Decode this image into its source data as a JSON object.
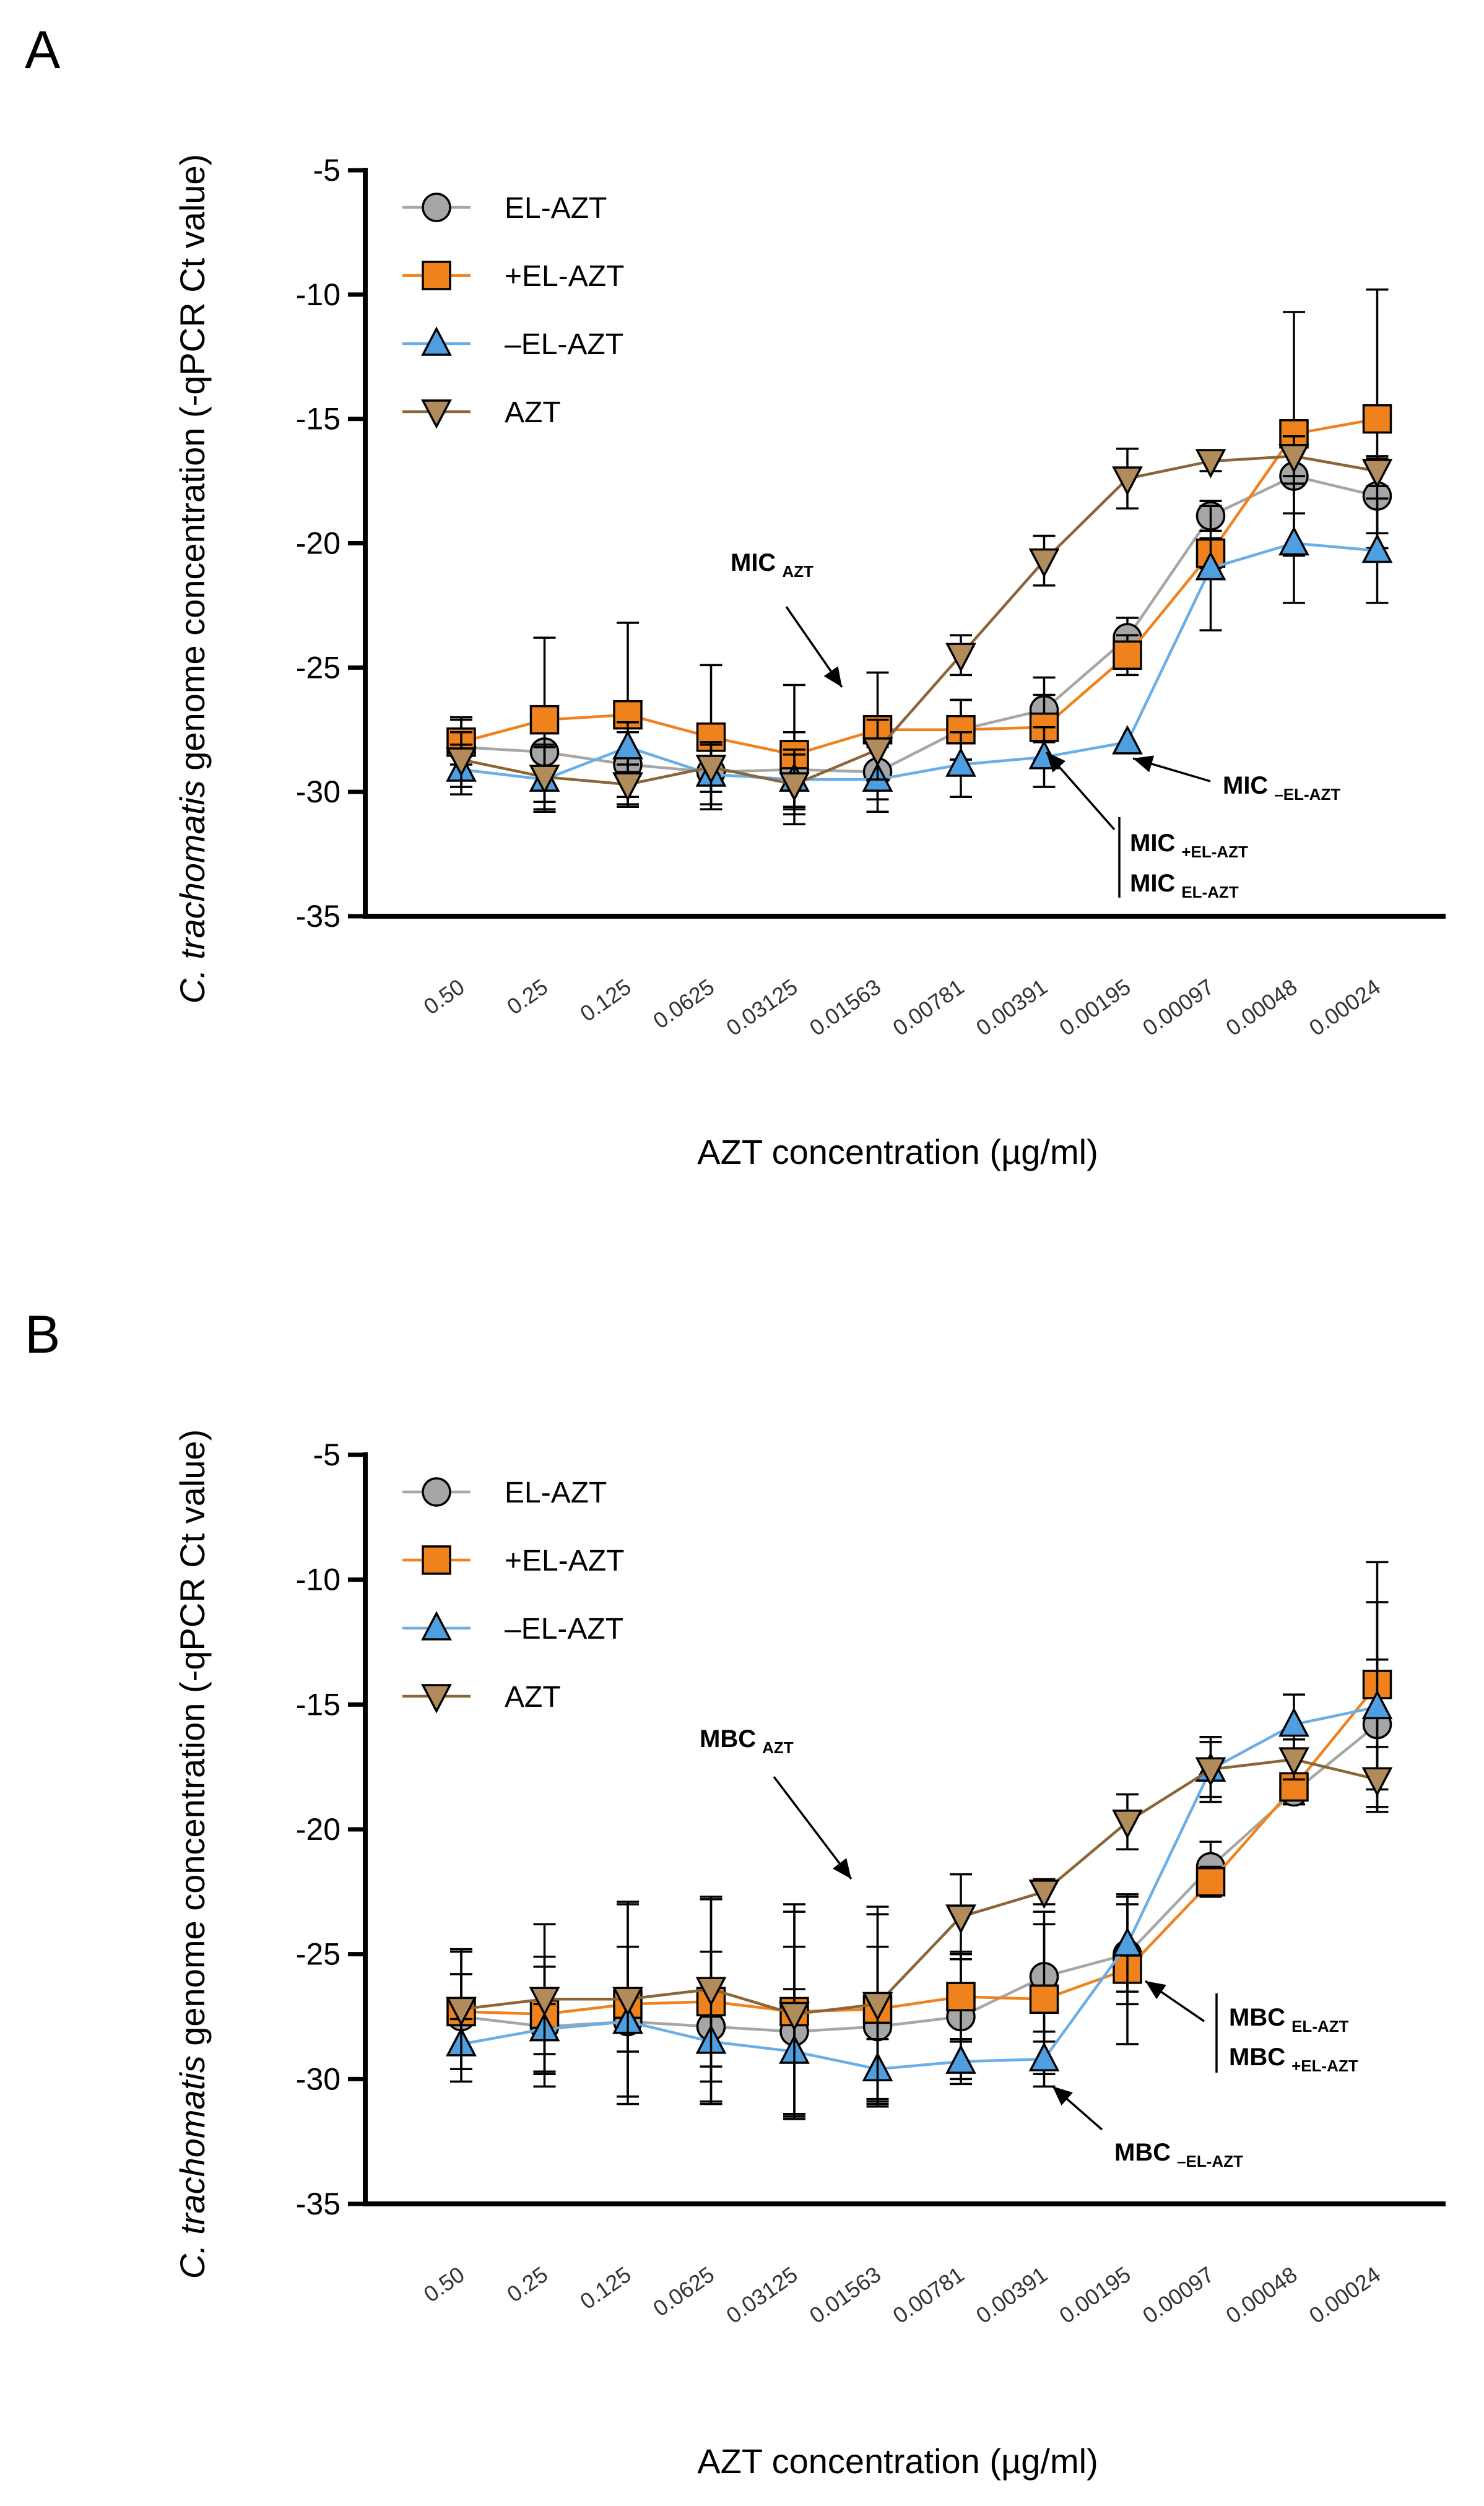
{
  "chart_data": [
    {
      "type": "line",
      "panel": "A",
      "xlabel": "AZT concentration (µg/ml)",
      "ylabel_italic": "C. trachomatis",
      "ylabel_rest": " genome concentration (-qPCR Ct value)",
      "ylim": [
        -35,
        -5
      ],
      "yticks": [
        -5,
        -10,
        -15,
        -20,
        -25,
        -30,
        -35
      ],
      "categories": [
        "0.50",
        "0.25",
        "0.125",
        "0.0625",
        "0.03125",
        "0.01563",
        "0.00781",
        "0.00391",
        "0.00195",
        "0.00097",
        "0.00048",
        "0.00024"
      ],
      "legend_position": "top-left",
      "series": [
        {
          "name": "EL-AZT",
          "marker": "circle",
          "color": "#a6a6a6",
          "line_color": "#a6a6a6",
          "values": [
            -28.2,
            -28.4,
            -28.9,
            -29.2,
            -29.1,
            -29.2,
            -27.5,
            -26.7,
            -23.8,
            -18.9,
            -17.3,
            -18.1
          ],
          "errors": [
            1.2,
            1.5,
            1.3,
            1.3,
            1.5,
            1.1,
            1.2,
            1.3,
            0.8,
            0.6,
            1.5,
            1.5
          ]
        },
        {
          "name": "+EL-AZT",
          "marker": "square",
          "color": "#f0821e",
          "line_color": "#f0821e",
          "values": [
            -28.0,
            -27.1,
            -26.9,
            -27.8,
            -28.5,
            -27.5,
            -27.5,
            -27.4,
            -24.5,
            -20.4,
            -15.6,
            -15.0
          ],
          "errors": [
            0.9,
            3.3,
            3.7,
            2.9,
            2.8,
            2.3,
            1.2,
            1.3,
            0.8,
            0.6,
            4.9,
            5.2
          ]
        },
        {
          "name": "–EL-AZT",
          "marker": "triangle-up",
          "color": "#4f9fe0",
          "line_color": "#6aaee8",
          "values": [
            -29.1,
            -29.5,
            -28.2,
            -29.3,
            -29.5,
            -29.5,
            -28.9,
            -28.6,
            -28.0,
            -21.0,
            -20.0,
            -20.3
          ],
          "errors": [
            1.0,
            1.3,
            1.0,
            1.2,
            1.2,
            1.3,
            1.3,
            1.2,
            0.0,
            2.5,
            2.4,
            2.1
          ]
        },
        {
          "name": "AZT",
          "marker": "triangle-down",
          "color": "#b28b5a",
          "line_color": "#8b6535",
          "values": [
            -28.7,
            -29.4,
            -29.7,
            -29.0,
            -29.7,
            -28.3,
            -24.5,
            -20.7,
            -17.4,
            -16.7,
            -16.5,
            -17.1
          ],
          "errors": [
            1.1,
            1.3,
            0.8,
            1.0,
            1.2,
            1.2,
            0.8,
            1.0,
            1.2,
            0.4,
            0.8,
            0.6
          ]
        }
      ],
      "annotations": {
        "mic_azt": {
          "main": "MIC",
          "sub": "AZT"
        },
        "mic_minus": {
          "main": "MIC",
          "sub": "–EL-AZT"
        },
        "mic_plus": {
          "main": "MIC",
          "sub": "+EL-AZT"
        },
        "mic_el": {
          "main": "MIC",
          "sub": "EL-AZT"
        }
      }
    },
    {
      "type": "line",
      "panel": "B",
      "xlabel": "AZT concentration (µg/ml)",
      "ylabel_italic": "C. trachomatis",
      "ylabel_rest": " genome concentration (-qPCR Ct value)",
      "ylim": [
        -35,
        -5
      ],
      "yticks": [
        -5,
        -10,
        -15,
        -20,
        -25,
        -30,
        -35
      ],
      "categories": [
        "0.50",
        "0.25",
        "0.125",
        "0.0625",
        "0.03125",
        "0.01563",
        "0.00781",
        "0.00391",
        "0.00195",
        "0.00097",
        "0.00048",
        "0.00024"
      ],
      "legend_position": "top-left",
      "series": [
        {
          "name": "EL-AZT",
          "marker": "circle",
          "color": "#a6a6a6",
          "line_color": "#a6a6a6",
          "values": [
            -27.5,
            -27.9,
            -27.7,
            -27.9,
            -28.1,
            -27.9,
            -27.5,
            -25.9,
            -25.0,
            -21.5,
            -18.5,
            -15.8
          ],
          "errors": [
            2.6,
            2.4,
            3.0,
            3.0,
            3.4,
            3.2,
            2.5,
            2.6,
            2.0,
            1.0,
            0.5,
            2.6
          ]
        },
        {
          "name": "+EL-AZT",
          "marker": "square",
          "color": "#f0821e",
          "line_color": "#f0821e",
          "values": [
            -27.3,
            -27.4,
            -27.0,
            -26.9,
            -27.3,
            -27.2,
            -26.7,
            -26.8,
            -25.6,
            -22.1,
            -18.3,
            -14.2
          ],
          "errors": [
            1.5,
            2.3,
            4.0,
            4.1,
            4.3,
            3.8,
            1.8,
            3.0,
            3.0,
            0.6,
            0.5,
            4.9
          ]
        },
        {
          "name": "–EL-AZT",
          "marker": "triangle-up",
          "color": "#4f9fe0",
          "line_color": "#6aaee8",
          "values": [
            -28.6,
            -28.0,
            -27.7,
            -28.5,
            -28.9,
            -29.6,
            -29.3,
            -29.2,
            -24.6,
            -17.6,
            -15.8,
            -15.1
          ],
          "errors": [
            1.0,
            1.0,
            1.2,
            1.0,
            2.5,
            1.2,
            0.9,
            1.1,
            1.9,
            1.1,
            1.2,
            4.2
          ]
        },
        {
          "name": "AZT",
          "marker": "triangle-down",
          "color": "#b28b5a",
          "line_color": "#8b6535",
          "values": [
            -27.2,
            -26.8,
            -26.8,
            -26.4,
            -27.4,
            -27.0,
            -23.5,
            -22.5,
            -19.7,
            -17.6,
            -17.2,
            -18.0
          ],
          "errors": [
            2.4,
            3.0,
            3.9,
            3.7,
            4.1,
            3.9,
            1.7,
            0.5,
            1.1,
            1.3,
            0.8,
            1.3
          ]
        }
      ],
      "annotations": {
        "mbc_azt": {
          "main": "MBC",
          "sub": "AZT"
        },
        "mbc_el": {
          "main": "MBC",
          "sub": "EL-AZT"
        },
        "mbc_plus": {
          "main": "MBC",
          "sub": "+EL-AZT"
        },
        "mbc_minus": {
          "main": "MBC",
          "sub": "–EL-AZT"
        }
      }
    }
  ]
}
